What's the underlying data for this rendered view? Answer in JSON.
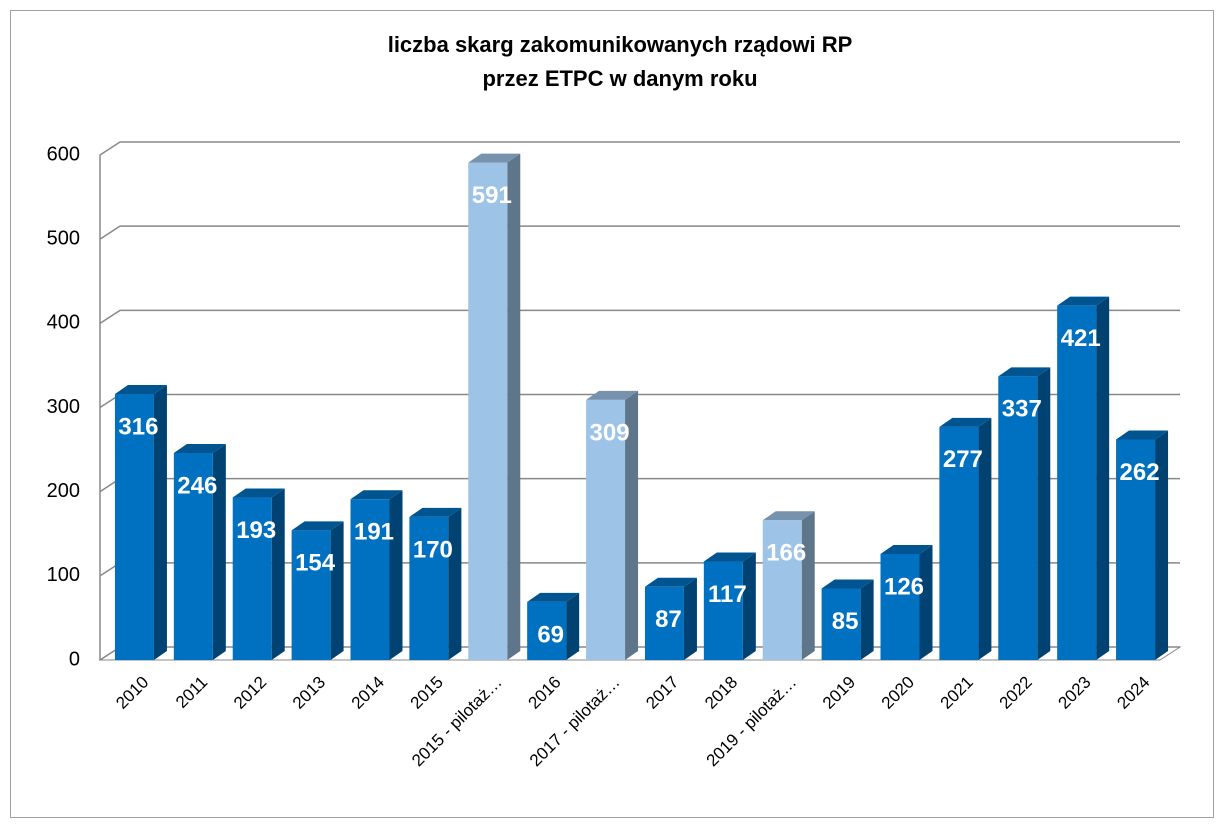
{
  "chart_data": {
    "type": "bar3d",
    "title": [
      "liczba skarg zakomunikowanych rządowi RP",
      "przez ETPC w danym roku"
    ],
    "categories": [
      "2010",
      "2011",
      "2012",
      "2013",
      "2014",
      "2015",
      "2015 - pilotaż…",
      "2016",
      "2017 - pilotaż…",
      "2017",
      "2018",
      "2019 - pilotaż…",
      "2019",
      "2020",
      "2021",
      "2022",
      "2023",
      "2024"
    ],
    "values": [
      316,
      246,
      193,
      154,
      191,
      170,
      591,
      69,
      309,
      87,
      117,
      166,
      85,
      126,
      277,
      337,
      421,
      262
    ],
    "colors": [
      "#0070c0",
      "#0070c0",
      "#0070c0",
      "#0070c0",
      "#0070c0",
      "#0070c0",
      "#9dc3e6",
      "#0070c0",
      "#9dc3e6",
      "#0070c0",
      "#0070c0",
      "#9dc3e6",
      "#0070c0",
      "#0070c0",
      "#0070c0",
      "#0070c0",
      "#0070c0",
      "#0070c0"
    ],
    "ylim": [
      0,
      600
    ],
    "yticks": [
      0,
      100,
      200,
      300,
      400,
      500,
      600
    ],
    "grid": true
  }
}
